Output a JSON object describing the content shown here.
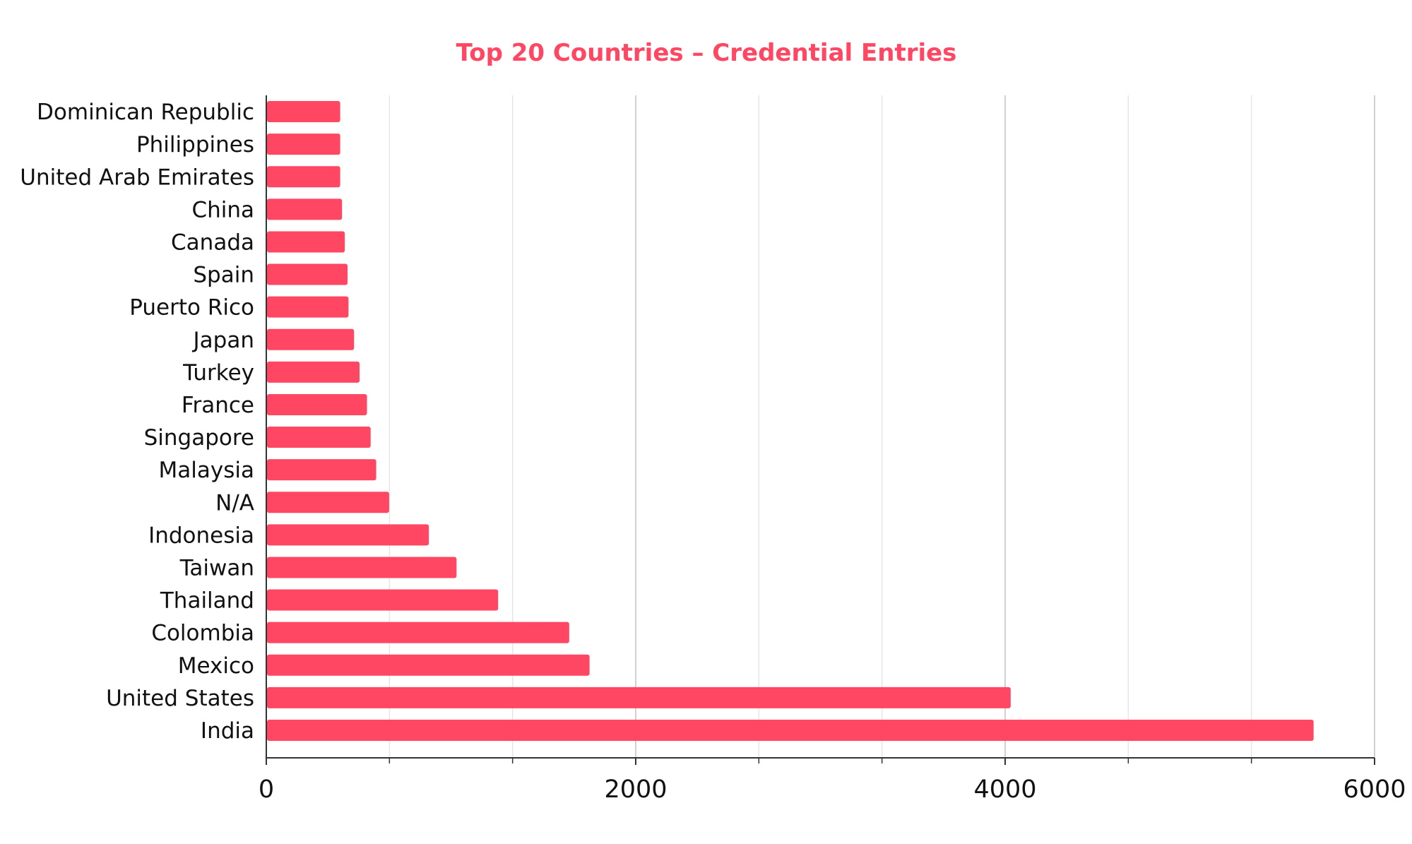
{
  "chart_data": {
    "type": "bar",
    "orientation": "horizontal",
    "title": "Top 20 Countries – Credential Entries",
    "xlabel": "",
    "ylabel": "",
    "categories": [
      "Dominican Republic",
      "Philippines",
      "United Arab Emirates",
      "China",
      "Canada",
      "Spain",
      "Puerto Rico",
      "Japan",
      "Turkey",
      "France",
      "Singapore",
      "Malaysia",
      "N/A",
      "Indonesia",
      "Taiwan",
      "Thailand",
      "Colombia",
      "Mexico",
      "United States",
      "India"
    ],
    "values": [
      400,
      400,
      400,
      410,
      425,
      440,
      445,
      475,
      505,
      545,
      565,
      595,
      665,
      880,
      1030,
      1255,
      1640,
      1750,
      4030,
      5670
    ],
    "xlim": [
      0,
      6000
    ],
    "xticks": [
      "0",
      "2000",
      "4000",
      "6000"
    ],
    "minor_step": 666.67,
    "grid": true,
    "legend": "none"
  },
  "colors": {
    "bar": "#ff4764",
    "title": "#ff4764",
    "axis": "#333333",
    "grid_major": "#cccccc",
    "grid_minor": "#e6e6e6"
  }
}
